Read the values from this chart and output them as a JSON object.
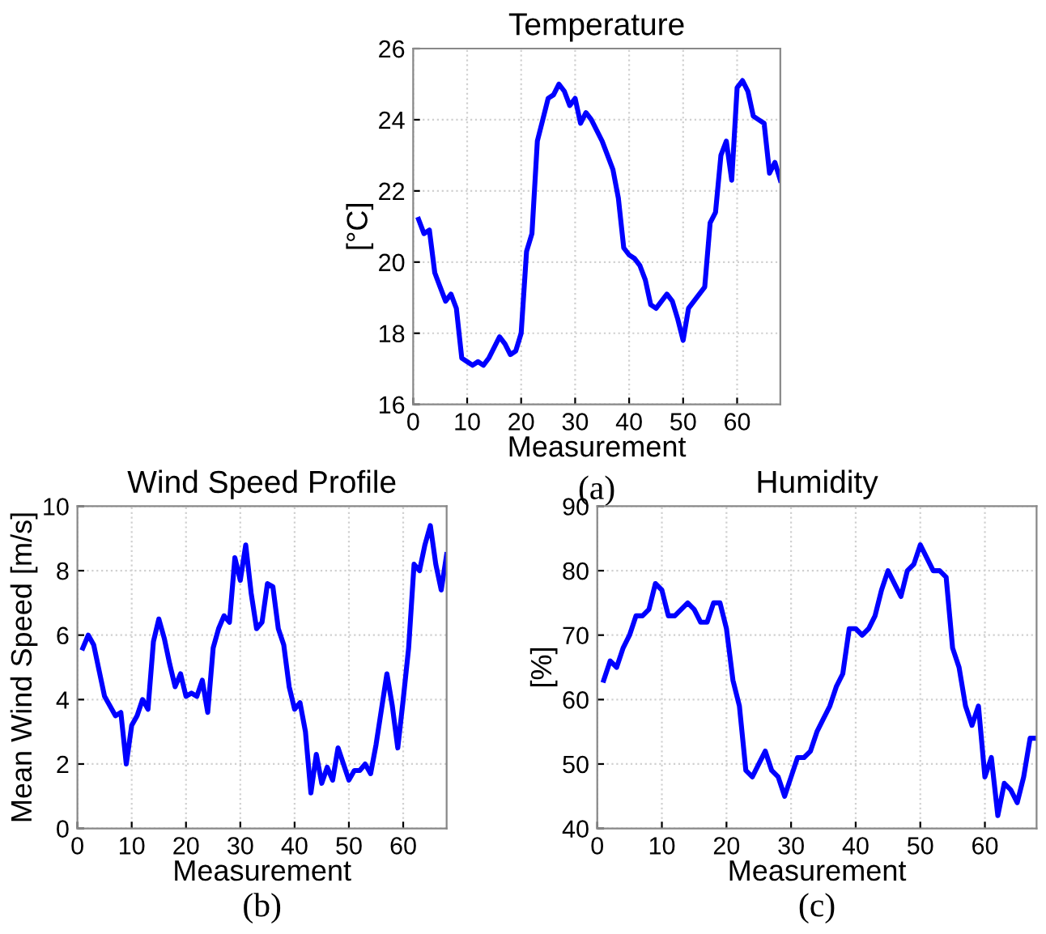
{
  "chart_data": [
    {
      "type": "line",
      "title": "Temperature",
      "xlabel": "Measurement",
      "ylabel": "[°C]",
      "annotations": [
        "(a)"
      ],
      "xlim": [
        0,
        68
      ],
      "ylim": [
        16,
        26
      ],
      "xticks": [
        0,
        10,
        20,
        30,
        40,
        50,
        60
      ],
      "yticks": [
        16,
        18,
        20,
        22,
        24,
        26
      ],
      "grid": true,
      "legend": false,
      "x": [
        1,
        2,
        3,
        4,
        5,
        6,
        7,
        8,
        9,
        10,
        11,
        12,
        13,
        14,
        15,
        16,
        17,
        18,
        19,
        20,
        21,
        22,
        23,
        24,
        25,
        26,
        27,
        28,
        29,
        30,
        31,
        32,
        33,
        34,
        35,
        36,
        37,
        38,
        39,
        40,
        41,
        42,
        43,
        44,
        45,
        46,
        47,
        48,
        49,
        50,
        51,
        52,
        53,
        54,
        55,
        56,
        57,
        58,
        59,
        60,
        61,
        62,
        63,
        64,
        65,
        66,
        67,
        68
      ],
      "series": [
        {
          "color": "#0000ff",
          "values": [
            21.2,
            20.8,
            20.9,
            19.7,
            19.3,
            18.9,
            19.1,
            18.7,
            17.3,
            17.2,
            17.1,
            17.2,
            17.1,
            17.3,
            17.6,
            17.9,
            17.7,
            17.4,
            17.5,
            18.0,
            20.3,
            20.8,
            23.4,
            24.0,
            24.6,
            24.7,
            25.0,
            24.8,
            24.4,
            24.6,
            23.9,
            24.2,
            24.0,
            23.7,
            23.4,
            23.0,
            22.6,
            21.8,
            20.4,
            20.2,
            20.1,
            19.9,
            19.5,
            18.8,
            18.7,
            18.9,
            19.1,
            18.9,
            18.4,
            17.8,
            18.7,
            18.9,
            19.1,
            19.3,
            21.1,
            21.4,
            23.0,
            23.4,
            22.3,
            24.9,
            25.1,
            24.8,
            24.1,
            24.0,
            23.9,
            22.5,
            22.8,
            22.3
          ]
        }
      ]
    },
    {
      "type": "line",
      "title": "Wind Speed Profile",
      "xlabel": "Measurement",
      "ylabel": "Mean Wind Speed [m/s]",
      "annotations": [
        "(b)"
      ],
      "xlim": [
        0,
        68
      ],
      "ylim": [
        0,
        10
      ],
      "xticks": [
        0,
        10,
        20,
        30,
        40,
        50,
        60
      ],
      "yticks": [
        0,
        2,
        4,
        6,
        8,
        10
      ],
      "grid": true,
      "legend": false,
      "x": [
        1,
        2,
        3,
        4,
        5,
        6,
        7,
        8,
        9,
        10,
        11,
        12,
        13,
        14,
        15,
        16,
        17,
        18,
        19,
        20,
        21,
        22,
        23,
        24,
        25,
        26,
        27,
        28,
        29,
        30,
        31,
        32,
        33,
        34,
        35,
        36,
        37,
        38,
        39,
        40,
        41,
        42,
        43,
        44,
        45,
        46,
        47,
        48,
        49,
        50,
        51,
        52,
        53,
        54,
        55,
        56,
        57,
        58,
        59,
        60,
        61,
        62,
        63,
        64,
        65,
        66,
        67,
        68
      ],
      "series": [
        {
          "color": "#0000ff",
          "values": [
            5.6,
            6.0,
            5.7,
            4.9,
            4.1,
            3.8,
            3.5,
            3.6,
            2.0,
            3.2,
            3.5,
            4.0,
            3.7,
            5.8,
            6.5,
            5.9,
            5.1,
            4.4,
            4.8,
            4.1,
            4.2,
            4.1,
            4.6,
            3.6,
            5.6,
            6.2,
            6.6,
            6.4,
            8.4,
            7.7,
            8.8,
            7.3,
            6.2,
            6.4,
            7.6,
            7.5,
            6.2,
            5.7,
            4.4,
            3.7,
            3.9,
            3.0,
            1.1,
            2.3,
            1.4,
            1.9,
            1.5,
            2.5,
            2.0,
            1.5,
            1.8,
            1.8,
            2.0,
            1.7,
            2.6,
            3.7,
            4.8,
            3.8,
            2.5,
            4.0,
            5.6,
            8.2,
            8.0,
            8.8,
            9.4,
            8.2,
            7.4,
            8.5
          ]
        }
      ]
    },
    {
      "type": "line",
      "title": "Humidity",
      "xlabel": "Measurement",
      "ylabel": "[%]",
      "annotations": [
        "(c)"
      ],
      "xlim": [
        0,
        68
      ],
      "ylim": [
        40,
        90
      ],
      "xticks": [
        0,
        10,
        20,
        30,
        40,
        50,
        60
      ],
      "yticks": [
        40,
        50,
        60,
        70,
        80,
        90
      ],
      "grid": true,
      "legend": false,
      "x": [
        1,
        2,
        3,
        4,
        5,
        6,
        7,
        8,
        9,
        10,
        11,
        12,
        13,
        14,
        15,
        16,
        17,
        18,
        19,
        20,
        21,
        22,
        23,
        24,
        25,
        26,
        27,
        28,
        29,
        30,
        31,
        32,
        33,
        34,
        35,
        36,
        37,
        38,
        39,
        40,
        41,
        42,
        43,
        44,
        45,
        46,
        47,
        48,
        49,
        50,
        51,
        52,
        53,
        54,
        55,
        56,
        57,
        58,
        59,
        60,
        61,
        62,
        63,
        64,
        65,
        66,
        67,
        68
      ],
      "series": [
        {
          "color": "#0000ff",
          "values": [
            63,
            66,
            65,
            68,
            70,
            73,
            73,
            74,
            78,
            77,
            73,
            73,
            74,
            75,
            74,
            72,
            72,
            75,
            75,
            71,
            63,
            59,
            49,
            48,
            50,
            52,
            49,
            48,
            45,
            48,
            51,
            51,
            52,
            55,
            57,
            59,
            62,
            64,
            71,
            71,
            70,
            71,
            73,
            77,
            80,
            78,
            76,
            80,
            81,
            84,
            82,
            80,
            80,
            79,
            68,
            65,
            59,
            56,
            59,
            48,
            51,
            42,
            47,
            46,
            44,
            48,
            54,
            54
          ]
        }
      ]
    }
  ]
}
